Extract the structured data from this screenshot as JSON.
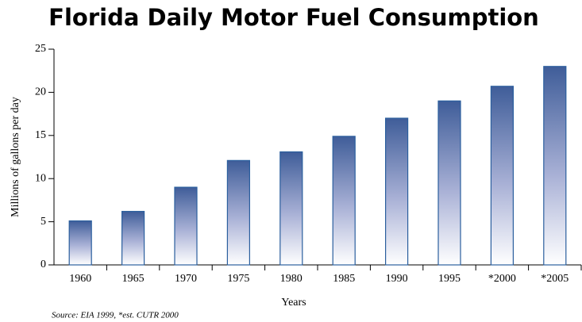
{
  "chart_data": {
    "type": "bar",
    "title": "Florida Daily Motor Fuel Consumption",
    "x_label": "Years",
    "y_label": "Millions of gallons per day",
    "note": "Source: EIA 1999, *est. CUTR 2000",
    "categories": [
      "1960",
      "1965",
      "1970",
      "1975",
      "1980",
      "1985",
      "1990",
      "1995",
      "*2000",
      "*2005"
    ],
    "values": [
      5.1,
      6.2,
      9.0,
      12.1,
      13.1,
      14.9,
      17.0,
      19.0,
      20.7,
      23.0
    ],
    "color": "#3f5d99",
    "ylim": [
      0,
      25
    ],
    "yticks": [
      0,
      5,
      10,
      15,
      20,
      25
    ]
  }
}
